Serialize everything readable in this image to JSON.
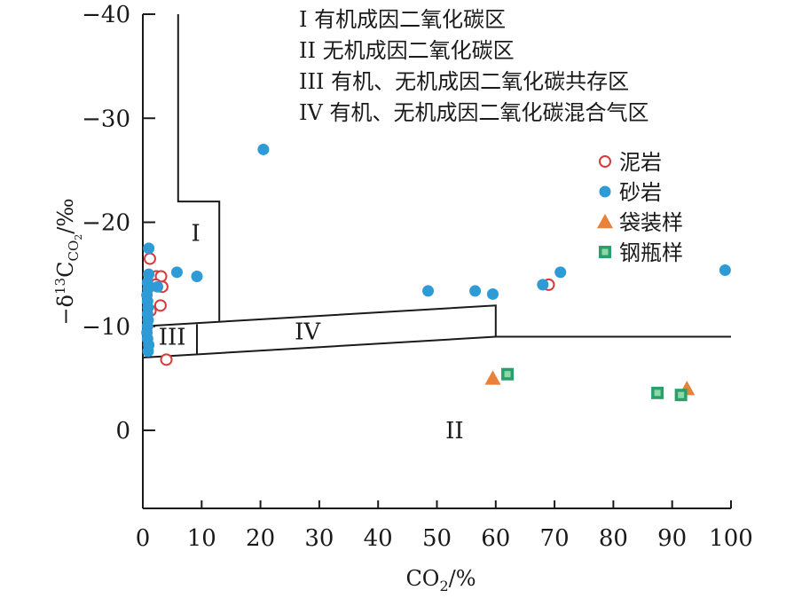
{
  "chart_data": {
    "type": "scatter",
    "xlabel_main": "CO",
    "xlabel_sub": "2",
    "xlabel_tail": "/%",
    "ylabel_parts": {
      "prefix": "−δ",
      "sup": "13",
      "c": "C",
      "sub1": "CO",
      "sub2": "2",
      "tail": "/‰"
    },
    "xlim": [
      0,
      100
    ],
    "ylim": [
      7.5,
      -40
    ],
    "x_ticks": [
      "0",
      "10",
      "20",
      "30",
      "40",
      "50",
      "60",
      "70",
      "80",
      "90",
      "100"
    ],
    "y_ticks": [
      {
        "value": -40,
        "label": "−40"
      },
      {
        "value": -30,
        "label": "−30"
      },
      {
        "value": -20,
        "label": "−20"
      },
      {
        "value": -10,
        "label": "−10"
      },
      {
        "value": 0,
        "label": "0"
      }
    ],
    "zone_descriptions": [
      "I 有机成因二氧化碳区",
      "II 无机成因二氧化碳区",
      "III 有机、无机成因二氧化碳共存区",
      "IV 有机、无机成因二氧化碳混合气区"
    ],
    "zone_labels": [
      {
        "text": "I",
        "x": 9,
        "y": -19
      },
      {
        "text": "II",
        "x": 53,
        "y": 0
      },
      {
        "text": "III",
        "x": 5,
        "y": -9
      },
      {
        "text": "IV",
        "x": 28,
        "y": -9.5
      }
    ],
    "boundaries": [
      {
        "id": "zone-i-boundary",
        "points": [
          [
            6,
            -40
          ],
          [
            6,
            -22
          ],
          [
            13,
            -22
          ],
          [
            13,
            -10.5
          ]
        ]
      },
      {
        "id": "upper-band-boundary",
        "points": [
          [
            0,
            -10
          ],
          [
            60,
            -12
          ],
          [
            60,
            -9
          ]
        ]
      },
      {
        "id": "lower-band-boundary",
        "points": [
          [
            0,
            -7
          ],
          [
            60,
            -9
          ],
          [
            100,
            -9
          ]
        ]
      },
      {
        "id": "zone-iii-iv-divider",
        "points": [
          [
            9.2,
            -10.2
          ],
          [
            9.2,
            -7.3
          ]
        ]
      }
    ],
    "series": [
      {
        "name": "泥岩",
        "marker": "open-circle",
        "color": "#d63a3a",
        "points": [
          [
            1.2,
            -16.5
          ],
          [
            2.3,
            -14.8
          ],
          [
            3.1,
            -14.8
          ],
          [
            3.3,
            -13.8
          ],
          [
            2.2,
            -14.0
          ],
          [
            3.0,
            -12.0
          ],
          [
            1.3,
            -11.5
          ],
          [
            4.0,
            -6.8
          ],
          [
            69.0,
            -14.0
          ]
        ]
      },
      {
        "name": "砂岩",
        "marker": "filled-circle",
        "color": "#2e9ad6",
        "points": [
          [
            20.5,
            -27.0
          ],
          [
            1.0,
            -17.5
          ],
          [
            5.8,
            -15.2
          ],
          [
            9.2,
            -14.8
          ],
          [
            1.0,
            -15.0
          ],
          [
            0.8,
            -14.2
          ],
          [
            0.9,
            -13.6
          ],
          [
            0.7,
            -13.0
          ],
          [
            0.8,
            -12.4
          ],
          [
            0.9,
            -11.8
          ],
          [
            0.8,
            -11.2
          ],
          [
            0.9,
            -10.6
          ],
          [
            0.8,
            -10.0
          ],
          [
            0.7,
            -9.4
          ],
          [
            0.8,
            -8.8
          ],
          [
            1.0,
            -8.2
          ],
          [
            0.9,
            -7.6
          ],
          [
            2.5,
            -13.8
          ],
          [
            48.5,
            -13.4
          ],
          [
            56.5,
            -13.4
          ],
          [
            59.5,
            -13.1
          ],
          [
            68.0,
            -14.0
          ],
          [
            71.0,
            -15.2
          ],
          [
            99.0,
            -15.4
          ]
        ]
      },
      {
        "name": "袋装样",
        "marker": "filled-triangle",
        "color": "#e8823a",
        "points": [
          [
            59.5,
            -5.0
          ],
          [
            92.5,
            -4.0
          ]
        ]
      },
      {
        "name": "钢瓶样",
        "marker": "filled-square",
        "color": "#27a06a",
        "points": [
          [
            62.0,
            -5.4
          ],
          [
            87.5,
            -3.6
          ],
          [
            91.5,
            -3.4
          ]
        ]
      }
    ],
    "legend_position": "right",
    "grid": false
  }
}
